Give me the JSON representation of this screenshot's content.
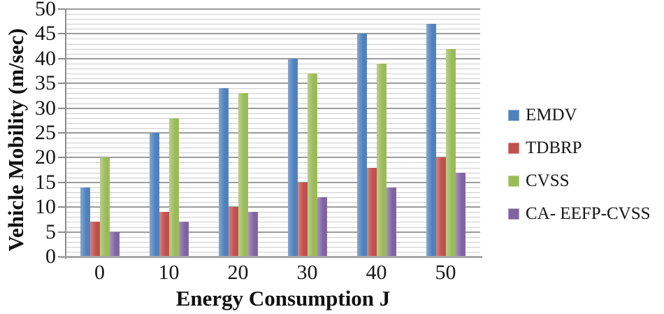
{
  "page": {
    "background": "#ffffff"
  },
  "chart_data": {
    "type": "bar",
    "title": "",
    "categories": [
      "0",
      "10",
      "20",
      "30",
      "40",
      "50"
    ],
    "series": [
      {
        "name": "EMDV",
        "color": "#4F81BD",
        "values": [
          14,
          25,
          34,
          40,
          45,
          47
        ]
      },
      {
        "name": "TDBRP",
        "color": "#C0504D",
        "values": [
          7,
          9,
          10,
          15,
          18,
          20
        ]
      },
      {
        "name": "CVSS",
        "color": "#9BBB59",
        "values": [
          20,
          28,
          33,
          37,
          39,
          42
        ]
      },
      {
        "name": "CA- EEFP-CVSS",
        "color": "#8064A2",
        "values": [
          5,
          7,
          9,
          12,
          14,
          17
        ]
      }
    ],
    "xlabel": "Energy Consumption J",
    "ylabel": "Vehicle Mobility (m/sec)",
    "ylim": [
      0,
      50
    ],
    "y_major_tick": 5,
    "y_minor_tick": 1,
    "y_tick_labels": [
      "0",
      "5",
      "10",
      "15",
      "20",
      "25",
      "30",
      "35",
      "40",
      "45",
      "50"
    ],
    "grid": {
      "horizontal_minor": true,
      "horizontal_major": true,
      "vertical": false
    },
    "legend_position": "right",
    "colors": {
      "major_gridline": "#9c9c9c",
      "minor_gridline": "#cdcdcd",
      "axis_line": "#8c8c8c",
      "baseline": "#a6a6a6",
      "text": "#161616"
    }
  }
}
